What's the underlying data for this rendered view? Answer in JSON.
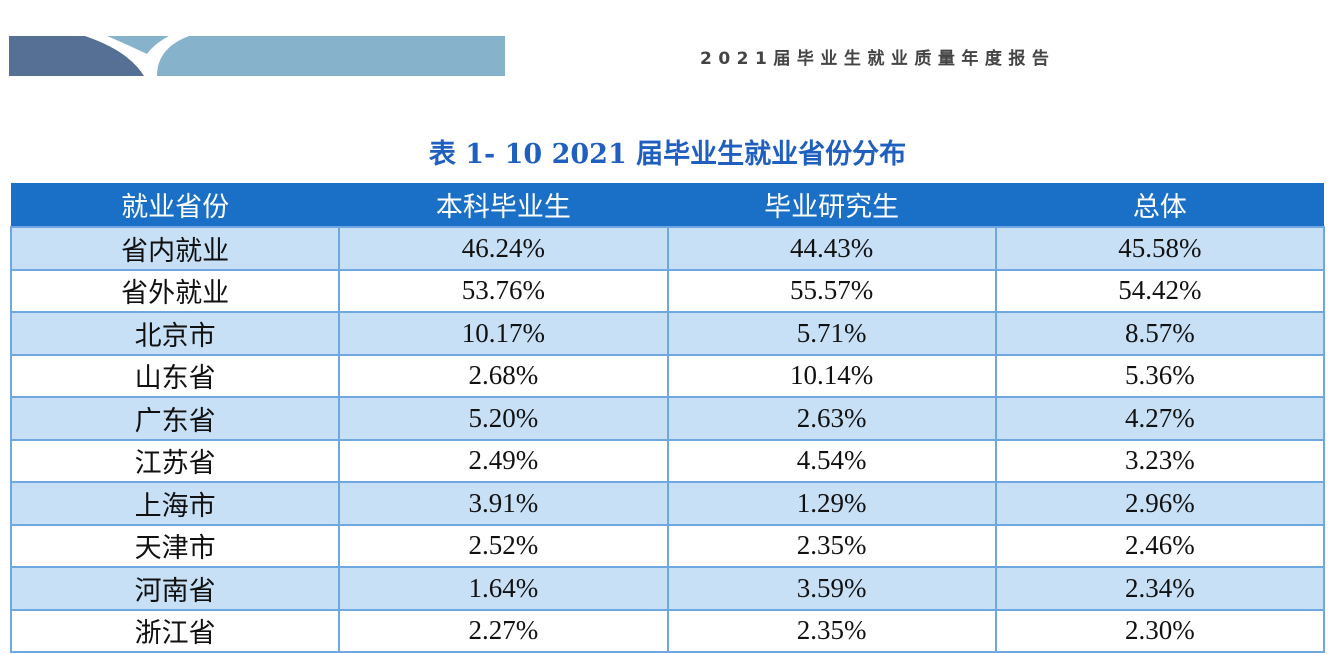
{
  "doc_header": "2021届毕业生就业质量年度报告",
  "title": "表 1- 10  2021 届毕业生就业省份分布",
  "columns": [
    "就业省份",
    "本科毕业生",
    "毕业研究生",
    "总体"
  ],
  "rows": [
    [
      "省内就业",
      "46.24%",
      "44.43%",
      "45.58%"
    ],
    [
      "省外就业",
      "53.76%",
      "55.57%",
      "54.42%"
    ],
    [
      "北京市",
      "10.17%",
      "5.71%",
      "8.57%"
    ],
    [
      "山东省",
      "2.68%",
      "10.14%",
      "5.36%"
    ],
    [
      "广东省",
      "5.20%",
      "2.63%",
      "4.27%"
    ],
    [
      "江苏省",
      "2.49%",
      "4.54%",
      "3.23%"
    ],
    [
      "上海市",
      "3.91%",
      "1.29%",
      "2.96%"
    ],
    [
      "天津市",
      "2.52%",
      "2.35%",
      "2.46%"
    ],
    [
      "河南省",
      "1.64%",
      "3.59%",
      "2.34%"
    ],
    [
      "浙江省",
      "2.27%",
      "2.35%",
      "2.30%"
    ]
  ],
  "colors": {
    "header": "#1a70c6",
    "row_alt": "#c7e0f6",
    "title": "#1f5fbf"
  }
}
